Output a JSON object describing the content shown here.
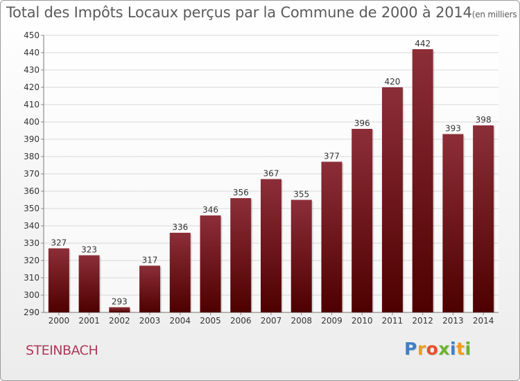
{
  "title": "Total des Impôts Locaux perçus par la Commune de 2000 à 2014",
  "unit_note": "(en milliers d'€)",
  "commune": "STEINBACH",
  "logo": {
    "text": "Proxiti",
    "letters": [
      {
        "ch": "P",
        "color": "#3f7fc6"
      },
      {
        "ch": "r",
        "color": "#f29c1f"
      },
      {
        "ch": "o",
        "color": "#e94e2b"
      },
      {
        "ch": "x",
        "color": "#6ab42d"
      },
      {
        "ch": "i",
        "color": "#3f7fc6"
      },
      {
        "ch": "t",
        "color": "#f29c1f"
      },
      {
        "ch": "i",
        "color": "#6ab42d"
      }
    ]
  },
  "colors": {
    "bar_top": "#8c2e38",
    "bar_bottom": "#4e0000",
    "grid": "#d8d8d8",
    "axis_text": "#333333"
  },
  "chart_data": {
    "type": "bar",
    "categories": [
      "2000",
      "2001",
      "2002",
      "2003",
      "2004",
      "2005",
      "2006",
      "2007",
      "2008",
      "2009",
      "2010",
      "2011",
      "2012",
      "2013",
      "2014"
    ],
    "values": [
      327,
      323,
      293,
      317,
      336,
      346,
      356,
      367,
      355,
      377,
      396,
      420,
      442,
      393,
      398
    ],
    "ylim": [
      290,
      450
    ],
    "yticks": [
      290,
      300,
      310,
      320,
      330,
      340,
      350,
      360,
      370,
      380,
      390,
      400,
      410,
      420,
      430,
      440,
      450
    ],
    "grid": true,
    "data_labels": true
  }
}
